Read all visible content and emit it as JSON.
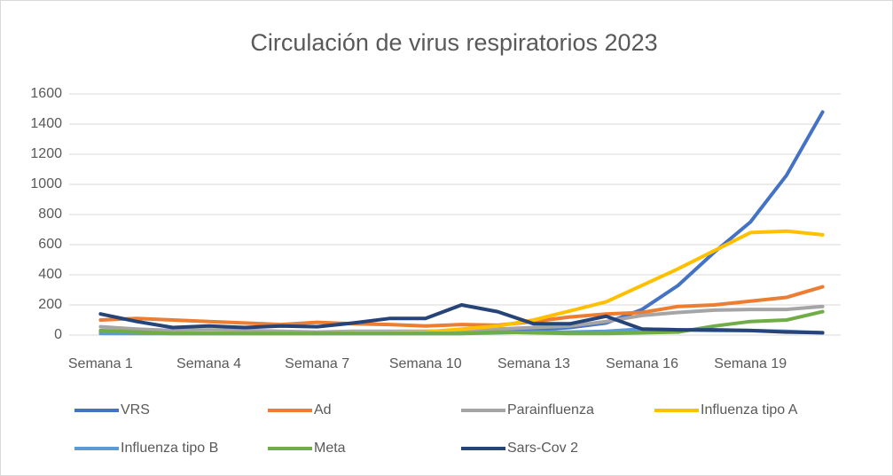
{
  "chart_data": {
    "type": "line",
    "title": "Circulación de virus respiratorios 2023",
    "categories": [
      "Semana 1",
      null,
      null,
      "Semana 4",
      null,
      null,
      "Semana 7",
      null,
      null,
      "Semana 10",
      null,
      null,
      "Semana 13",
      null,
      null,
      "Semana 16",
      null,
      null,
      "Semana 19",
      null,
      null
    ],
    "series": [
      {
        "name": "VRS",
        "color": "#4472c4",
        "values": [
          20,
          20,
          15,
          20,
          15,
          15,
          10,
          15,
          15,
          15,
          20,
          25,
          35,
          50,
          80,
          170,
          330,
          550,
          750,
          1060,
          1480
        ]
      },
      {
        "name": "Ad",
        "color": "#ed7d31",
        "values": [
          100,
          110,
          100,
          90,
          80,
          70,
          85,
          75,
          70,
          60,
          70,
          65,
          90,
          120,
          140,
          150,
          190,
          200,
          225,
          250,
          320
        ]
      },
      {
        "name": "Parainfluenza",
        "color": "#a5a5a5",
        "values": [
          55,
          40,
          30,
          35,
          30,
          25,
          20,
          25,
          25,
          25,
          30,
          40,
          50,
          60,
          90,
          130,
          150,
          165,
          170,
          170,
          190
        ]
      },
      {
        "name": "Influenza tipo A",
        "color": "#ffc000",
        "values": [
          20,
          15,
          10,
          15,
          10,
          10,
          10,
          15,
          15,
          20,
          40,
          60,
          100,
          160,
          220,
          330,
          440,
          560,
          680,
          690,
          665
        ]
      },
      {
        "name": "Influenza tipo B",
        "color": "#5b9bd5",
        "values": [
          10,
          10,
          10,
          10,
          10,
          10,
          10,
          10,
          10,
          10,
          10,
          15,
          20,
          20,
          25,
          40,
          35,
          30,
          30,
          25,
          15
        ]
      },
      {
        "name": "Meta",
        "color": "#70ad47",
        "values": [
          30,
          20,
          10,
          10,
          10,
          10,
          10,
          10,
          10,
          10,
          10,
          20,
          15,
          10,
          10,
          15,
          20,
          60,
          90,
          100,
          155
        ]
      },
      {
        "name": "Sars-Cov 2",
        "color": "#264478",
        "values": [
          140,
          90,
          50,
          60,
          50,
          60,
          55,
          80,
          110,
          110,
          200,
          155,
          75,
          75,
          125,
          40,
          35,
          35,
          30,
          20,
          15
        ]
      }
    ],
    "ylim": [
      0,
      1600
    ],
    "yticks": [
      0,
      200,
      400,
      600,
      800,
      1000,
      1200,
      1400,
      1600
    ],
    "grid": true,
    "legend": "bottom"
  }
}
